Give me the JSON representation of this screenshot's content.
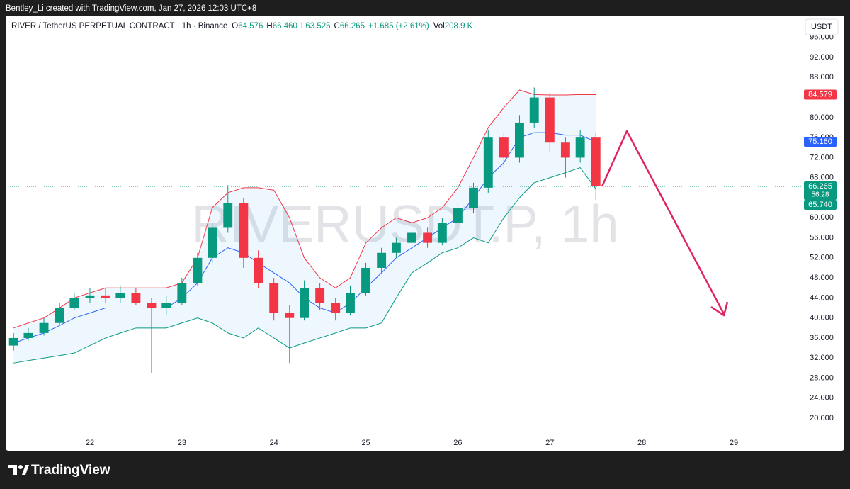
{
  "header": {
    "attribution": "Bentley_Li created with TradingView.com, Jan 27, 2026 12:03 UTC+8"
  },
  "legend": {
    "symbol": "RIVER / TetherUS PERPETUAL CONTRACT · 1h · Binance",
    "fields": [
      {
        "key": "O",
        "value": "64.576"
      },
      {
        "key": "H",
        "value": "66.460"
      },
      {
        "key": "L",
        "value": "63.525"
      },
      {
        "key": "C",
        "value": "66.265"
      }
    ],
    "change": "+1.685 (+2.61%)",
    "volume_key": "Vol",
    "volume": "208.9 K"
  },
  "currency": "USDT",
  "watermark": "RIVERUSDT.P, 1h",
  "footer": {
    "brand": "TradingView"
  },
  "chart_data": {
    "type": "candlestick",
    "x": [
      21.17,
      21.33,
      21.5,
      21.67,
      21.83,
      22.0,
      22.17,
      22.33,
      22.5,
      22.67,
      22.83,
      23.0,
      23.17,
      23.33,
      23.5,
      23.67,
      23.83,
      24.0,
      24.17,
      24.33,
      24.5,
      24.67,
      24.83,
      25.0,
      25.17,
      25.33,
      25.5,
      25.67,
      25.83,
      26.0,
      26.17,
      26.33,
      26.5,
      26.67,
      26.83,
      27.0,
      27.17,
      27.33,
      27.5
    ],
    "open": [
      34.5,
      36,
      37,
      39,
      42,
      44,
      44.5,
      44,
      45,
      43,
      42,
      43,
      47,
      52,
      58,
      63,
      52,
      47,
      41,
      40,
      46,
      43,
      41,
      45,
      50,
      53,
      55,
      57,
      55,
      59,
      62,
      66,
      76,
      72,
      79,
      84,
      75,
      72,
      76
    ],
    "high": [
      37,
      38,
      40,
      43,
      45,
      46,
      46,
      46.5,
      46,
      44,
      44.5,
      48,
      53,
      59,
      66.5,
      64,
      53.5,
      48,
      42.5,
      47.5,
      47,
      44,
      46.5,
      51,
      54,
      56,
      58.5,
      58,
      60,
      63,
      67,
      77.5,
      77,
      80.5,
      86,
      85,
      76,
      77.5,
      77
    ],
    "low": [
      33.5,
      35.5,
      36.5,
      38.5,
      41.5,
      43,
      43,
      43,
      42.5,
      29,
      40.5,
      42.5,
      46.5,
      51,
      57,
      50,
      46,
      39.5,
      31,
      39.5,
      41.5,
      39.5,
      40.5,
      44.5,
      49,
      52,
      54,
      54,
      54.5,
      58,
      61,
      65,
      70,
      71,
      78,
      73,
      68,
      71,
      63.525
    ],
    "close": [
      36,
      37,
      39,
      42,
      44,
      44.5,
      44,
      45,
      43,
      42,
      43,
      47,
      52,
      58,
      63,
      52,
      47,
      41,
      40,
      46,
      43,
      41,
      45,
      50,
      53,
      55,
      57,
      55,
      59,
      62,
      66,
      76,
      72,
      79,
      84,
      75,
      72,
      76,
      66.265
    ],
    "up_color": "#089981",
    "down_color": "#f23645",
    "bands": [
      {
        "color": "#f23645",
        "values": [
          38,
          39,
          40,
          42,
          44,
          45,
          46,
          46,
          46,
          46,
          46,
          47,
          52,
          62,
          65,
          66,
          66,
          65.5,
          60,
          52,
          48,
          46,
          48,
          55,
          58,
          60,
          59,
          60,
          62,
          66,
          72,
          78,
          82,
          85.5,
          84.6,
          84.5,
          84.5,
          84.6,
          84.579
        ]
      },
      {
        "color": "#2962ff",
        "values": [
          35,
          36,
          37,
          38.5,
          40,
          41,
          42,
          42,
          42,
          42,
          42,
          44,
          47,
          52,
          54,
          53,
          51,
          49,
          47,
          44,
          42,
          41,
          43,
          46,
          49,
          52,
          54,
          56,
          58,
          60,
          64,
          68,
          71,
          76,
          77,
          77,
          76.5,
          76.5,
          75.16
        ]
      },
      {
        "color": "#089981",
        "values": [
          31,
          31.5,
          32,
          32.5,
          33,
          34.5,
          36,
          37,
          38,
          38,
          38,
          39,
          40,
          39,
          37,
          36,
          38,
          36,
          34,
          35,
          36,
          37,
          38,
          38,
          39,
          44,
          49,
          51,
          53,
          54,
          56,
          55,
          60,
          64,
          67,
          68,
          69,
          70,
          65.74
        ]
      }
    ],
    "band_fill": "#2196f3",
    "xlim": [
      21.084,
      29.608
    ],
    "xticks": [
      22,
      23,
      24,
      25,
      26,
      27,
      28,
      29
    ],
    "ylim": [
      16.9,
      99.5
    ],
    "yticks": [
      {
        "value": 20,
        "label": "20.000"
      },
      {
        "value": 24,
        "label": "24.000"
      },
      {
        "value": 28,
        "label": "28.000"
      },
      {
        "value": 32,
        "label": "32.000"
      },
      {
        "value": 36,
        "label": "36.000"
      },
      {
        "value": 40,
        "label": "40.000"
      },
      {
        "value": 44,
        "label": "44.000"
      },
      {
        "value": 48,
        "label": "48.000"
      },
      {
        "value": 52,
        "label": "52.000"
      },
      {
        "value": 56,
        "label": "56.000"
      },
      {
        "value": 60,
        "label": "60.000"
      },
      {
        "value": 64,
        "label": "64.000"
      },
      {
        "value": 68,
        "label": "68.000"
      },
      {
        "value": 72,
        "label": "72.000"
      },
      {
        "value": 76,
        "label": "76.000"
      },
      {
        "value": 80,
        "label": "80.000"
      },
      {
        "value": 84,
        "label": "84.000"
      },
      {
        "value": 88,
        "label": "88.000"
      },
      {
        "value": 92,
        "label": "92.000"
      },
      {
        "value": 96,
        "label": "96.000"
      }
    ],
    "price_labels": [
      {
        "value": 84.579,
        "label": "84.579",
        "color": "#f23645"
      },
      {
        "value": 75.16,
        "label": "75.160",
        "color": "#2962ff"
      },
      {
        "value": 66.265,
        "label": "66.265",
        "color": "#089981",
        "countdown": "56:28"
      },
      {
        "value": 65.74,
        "label": "65.740",
        "color": "#089981"
      }
    ]
  }
}
